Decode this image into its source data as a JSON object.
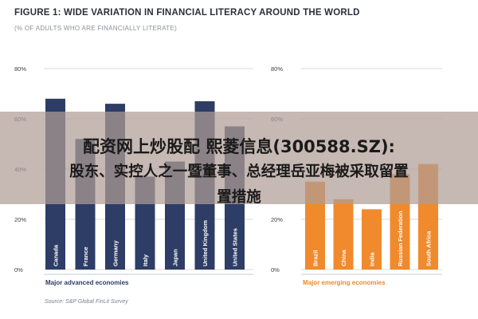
{
  "figure": {
    "title": "FIGURE 1: WIDE VARIATION IN FINANCIAL LITERACY AROUND THE WORLD",
    "subtitle": "(% OF ADULTS WHO ARE FINANCIALLY LITERATE)",
    "source": "Source: S&P Global FinLit Survey"
  },
  "overlay": {
    "line1": "配资网上炒股配 熙菱信息(300588.SZ):",
    "line2": "股东、实控人之一暨董事、总经理岳亚梅被采取留置",
    "line3": "置措施"
  },
  "colors": {
    "advanced": "#2e3d66",
    "emerging": "#f08a2d",
    "grid": "#d9dbe0",
    "axis_text": "#3b3f4a"
  },
  "chart_data": [
    {
      "type": "bar",
      "title": "Major advanced economies",
      "categories": [
        "Canada",
        "France",
        "Germany",
        "Italy",
        "Japan",
        "United Kingdom",
        "United States"
      ],
      "values": [
        68,
        52,
        66,
        37,
        43,
        67,
        57
      ],
      "ylim": [
        0,
        80
      ],
      "yticks": [
        0,
        20,
        40,
        60,
        80
      ],
      "ytick_labels": [
        "0%",
        "20%",
        "40%",
        "60%",
        "80%"
      ],
      "grid": true,
      "color": "#2e3d66"
    },
    {
      "type": "bar",
      "title": "Major emerging economies",
      "categories": [
        "Brazil",
        "China",
        "India",
        "Russian Federation",
        "South Africa"
      ],
      "values": [
        35,
        28,
        24,
        38,
        42
      ],
      "ylim": [
        0,
        80
      ],
      "yticks": [
        0,
        20,
        40,
        60,
        80
      ],
      "ytick_labels": [
        "0%",
        "20%",
        "40%",
        "60%",
        "80%"
      ],
      "grid": true,
      "color": "#f08a2d"
    }
  ]
}
